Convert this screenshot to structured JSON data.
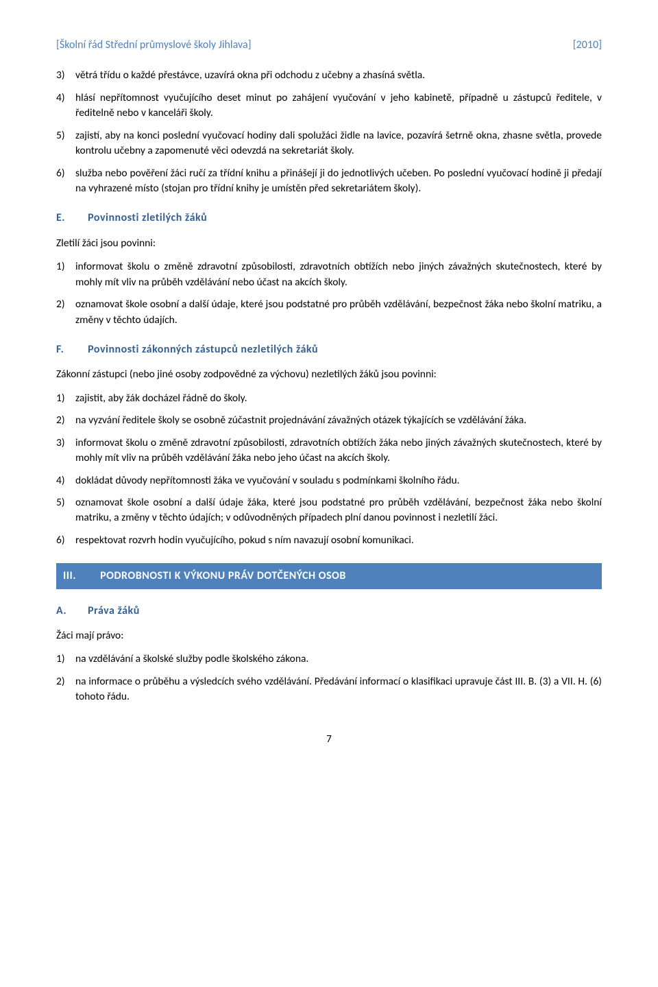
{
  "header": {
    "left": "[Školní řád Střední průmyslové školy Jihlava]",
    "right": "[2010]"
  },
  "block1": {
    "items": [
      {
        "num": "3)",
        "text": "větrá třídu o každé přestávce, uzavírá okna při odchodu z učebny a zhasíná světla."
      },
      {
        "num": "4)",
        "text": "hlásí nepřítomnost vyučujícího deset minut po zahájení vyučování v jeho kabinetě, případně u zástupců ředitele, v ředitelně nebo v kanceláři školy."
      },
      {
        "num": "5)",
        "text": "zajistí, aby na konci poslední vyučovací hodiny dali spolužáci židle na lavice, pozavírá šetrně okna, zhasne světla, provede kontrolu učebny a zapomenuté věci odevzdá na sekretariát školy."
      },
      {
        "num": "6)",
        "text": "služba nebo pověření žáci ručí za třídní knihu a přinášejí ji do jednotlivých učeben. Po poslední vyučovací hodině ji předají na vyhrazené místo (stojan pro třídní knihy je umístěn před sekretariátem školy)."
      }
    ]
  },
  "sectionE": {
    "letter": "E.",
    "title": "Povinnosti zletilých žáků",
    "lead": "Zletilí žáci jsou povinni:",
    "items": [
      {
        "num": "1)",
        "text": "informovat školu o změně zdravotní způsobilosti, zdravotních obtížích nebo jiných závažných skutečnostech, které by mohly mít vliv na průběh vzdělávání nebo účast na akcích školy."
      },
      {
        "num": "2)",
        "text": "oznamovat škole osobní a další údaje, které jsou podstatné pro průběh vzdělávání, bezpečnost žáka nebo školní matriku, a změny v těchto údajích."
      }
    ]
  },
  "sectionF": {
    "letter": "F.",
    "title": "Povinnosti zákonných zástupců nezletilých žáků",
    "lead": "Zákonní zástupci (nebo jiné osoby zodpovědné za výchovu) nezletilých žáků jsou povinni:",
    "items": [
      {
        "num": "1)",
        "text": "zajistit, aby žák docházel řádně do školy."
      },
      {
        "num": "2)",
        "text": "na vyzvání ředitele školy se osobně zúčastnit projednávání závažných otázek týkajících se vzdělávání žáka."
      },
      {
        "num": "3)",
        "text": "informovat školu o změně zdravotní způsobilosti, zdravotních obtížích žáka nebo jiných závažných skutečnostech, které by mohly mít vliv na průběh vzdělávání žáka nebo jeho účast na akcích školy."
      },
      {
        "num": "4)",
        "text": "dokládat důvody nepřítomnosti žáka ve vyučování v souladu s podmínkami školního řádu."
      },
      {
        "num": "5)",
        "text": "oznamovat škole osobní a další údaje žáka, které jsou podstatné pro průběh vzdělávání, bezpečnost žáka nebo školní matriku, a změny v těchto údajích; v odůvodněných případech plní danou povinnost i nezletilí žáci."
      },
      {
        "num": "6)",
        "text": "respektovat rozvrh hodin vyučujícího, pokud s ním navazují osobní komunikaci."
      }
    ]
  },
  "sectionIII": {
    "roman": "III.",
    "title": "PODROBNOSTI K VÝKONU PRÁV DOTČENÝCH OSOB"
  },
  "sectionA": {
    "letter": "A.",
    "title": "Práva žáků",
    "lead": "Žáci mají právo:",
    "items": [
      {
        "num": "1)",
        "text": "na vzdělávání a školské služby podle školského zákona."
      },
      {
        "num": "2)",
        "text": "na informace o průběhu a výsledcích svého vzdělávání. Předávání informací o klasifikaci upravuje část III. B. (3) a VII. H. (6) tohoto řádu."
      }
    ]
  },
  "pageNumber": "7",
  "colors": {
    "headingBlue": "#365f91",
    "headerBlue": "#4f81bd",
    "barBg": "#4f81bd",
    "barText": "#ffffff",
    "bodyText": "#000000",
    "pageBg": "#ffffff"
  }
}
